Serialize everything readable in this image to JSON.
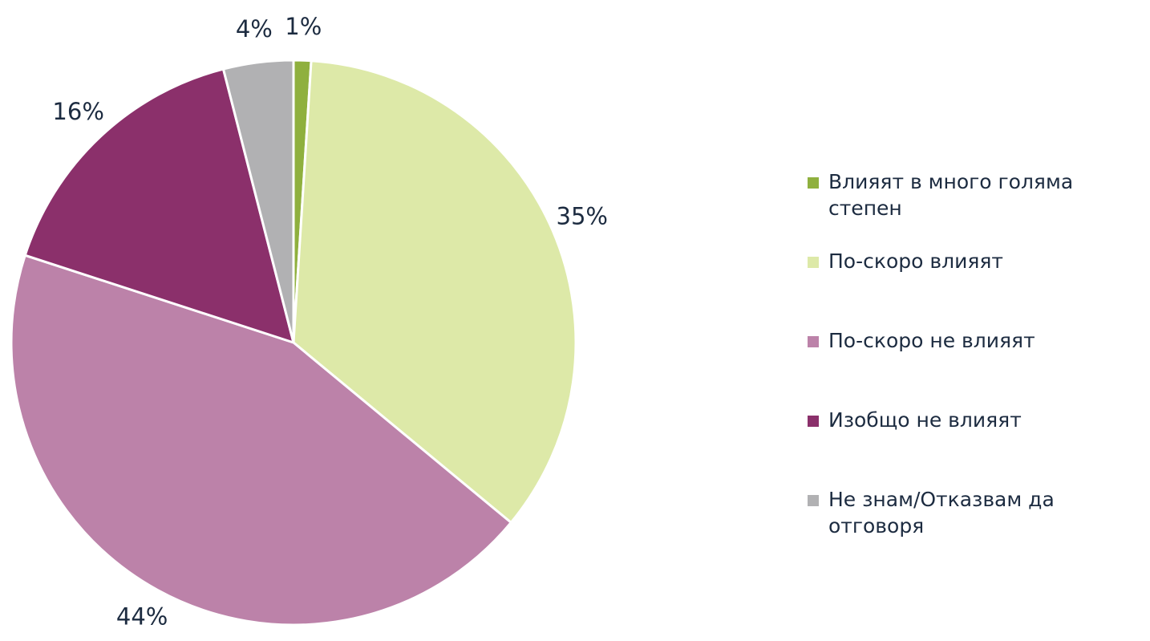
{
  "chart_data": {
    "type": "pie",
    "categories": [
      "Влияят в много голяма степен",
      "По-скоро влияят",
      "По-скоро не влияят",
      "Изобщо не влияят",
      "Не знам/Отказвам да отговоря"
    ],
    "values": [
      1,
      35,
      44,
      16,
      4
    ],
    "value_labels": [
      "1%",
      "35%",
      "44%",
      "16%",
      "4%"
    ],
    "colors": [
      "#8fb03e",
      "#dde9a8",
      "#bc82a9",
      "#8b306b",
      "#b1b1b3"
    ],
    "legend": "right"
  }
}
